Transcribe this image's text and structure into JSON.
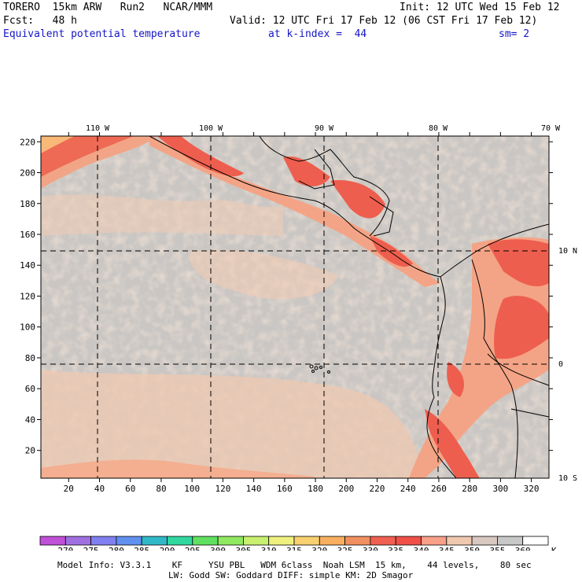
{
  "header": {
    "model": "TORERO  15km ARW   Run2   NCAR/MMM",
    "init": "Init: 12 UTC Wed 15 Feb 12",
    "fcst": "Fcst:   48 h",
    "valid": "Valid: 12 UTC Fri 17 Feb 12 (06 CST Fri 17 Feb 12)",
    "field": "Equivalent potential temperature",
    "level": "at k-index =  44",
    "smooth": "sm= 2"
  },
  "map": {
    "lon_labels": [
      "110 W",
      "100 W",
      "90 W",
      "80 W",
      "70 W"
    ],
    "lat_labels": [
      "10 N",
      "0",
      "10 S"
    ],
    "x_ticks": [
      "20",
      "40",
      "60",
      "80",
      "100",
      "120",
      "140",
      "160",
      "180",
      "200",
      "220",
      "240",
      "260",
      "280",
      "300",
      "320"
    ],
    "y_ticks": [
      "220",
      "200",
      "180",
      "160",
      "140",
      "120",
      "100",
      "80",
      "60",
      "40",
      "20"
    ]
  },
  "colorbar": {
    "levels": [
      "270",
      "275",
      "280",
      "285",
      "290",
      "295",
      "300",
      "305",
      "310",
      "315",
      "320",
      "325",
      "330",
      "335",
      "340",
      "345",
      "350",
      "355",
      "360"
    ],
    "unit": "K",
    "colors": [
      "#c050d8",
      "#a070e0",
      "#8080f0",
      "#6090f0",
      "#30b8c8",
      "#30d8a0",
      "#60e060",
      "#90e860",
      "#c8f070",
      "#f0f080",
      "#f8d070",
      "#f8b060",
      "#f09060",
      "#f06050",
      "#f05048",
      "#f8a088",
      "#f0c8b0",
      "#d8c8c0",
      "#c8c8c8",
      "#ffffff"
    ]
  },
  "footer": {
    "line1": "Model Info: V3.3.1    KF     YSU PBL   WDM 6class  Noah LSM  15 km,    44 levels,    80 sec",
    "line2": "LW: Godd SW: Goddard DIFF: simple KM: 2D Smagor"
  }
}
